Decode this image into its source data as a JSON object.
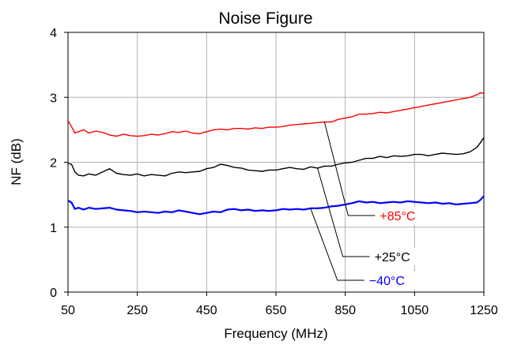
{
  "chart_data": {
    "type": "line",
    "title": "Noise Figure",
    "xlabel": "Frequency (MHz)",
    "ylabel": "NF (dB)",
    "xlim": [
      50,
      1250
    ],
    "ylim": [
      0,
      4
    ],
    "xticks": [
      50,
      250,
      450,
      650,
      850,
      1050,
      1250
    ],
    "yticks": [
      0,
      1,
      2,
      3,
      4
    ],
    "grid": true,
    "legend": "annotation-callouts-right",
    "series": [
      {
        "name": "+85°C",
        "color": "#ff0000",
        "x": [
          50,
          60,
          70,
          80,
          95,
          110,
          130,
          150,
          170,
          190,
          210,
          230,
          250,
          270,
          290,
          310,
          330,
          350,
          370,
          390,
          410,
          430,
          450,
          470,
          490,
          510,
          530,
          550,
          570,
          590,
          610,
          630,
          650,
          670,
          690,
          710,
          730,
          750,
          770,
          790,
          810,
          830,
          850,
          870,
          890,
          910,
          930,
          950,
          970,
          990,
          1010,
          1030,
          1050,
          1070,
          1090,
          1110,
          1130,
          1150,
          1170,
          1190,
          1210,
          1230,
          1240,
          1250
        ],
        "y": [
          2.64,
          2.55,
          2.45,
          2.47,
          2.5,
          2.45,
          2.48,
          2.46,
          2.42,
          2.4,
          2.43,
          2.41,
          2.4,
          2.41,
          2.43,
          2.42,
          2.44,
          2.47,
          2.46,
          2.48,
          2.45,
          2.44,
          2.47,
          2.5,
          2.51,
          2.5,
          2.52,
          2.52,
          2.51,
          2.53,
          2.52,
          2.54,
          2.54,
          2.55,
          2.57,
          2.58,
          2.59,
          2.6,
          2.61,
          2.62,
          2.62,
          2.66,
          2.68,
          2.7,
          2.74,
          2.74,
          2.75,
          2.77,
          2.76,
          2.78,
          2.8,
          2.82,
          2.84,
          2.86,
          2.88,
          2.9,
          2.92,
          2.94,
          2.96,
          2.98,
          3.0,
          3.04,
          3.07,
          3.06
        ]
      },
      {
        "name": "+25°C",
        "color": "#000000",
        "x": [
          50,
          60,
          70,
          80,
          95,
          110,
          130,
          150,
          170,
          190,
          210,
          230,
          250,
          270,
          290,
          310,
          330,
          350,
          370,
          390,
          410,
          430,
          450,
          470,
          490,
          510,
          530,
          550,
          570,
          590,
          610,
          630,
          650,
          670,
          690,
          710,
          730,
          750,
          770,
          790,
          810,
          830,
          850,
          870,
          890,
          910,
          930,
          950,
          970,
          990,
          1010,
          1030,
          1050,
          1070,
          1090,
          1110,
          1130,
          1150,
          1170,
          1190,
          1210,
          1230,
          1240,
          1250
        ],
        "y": [
          1.98,
          1.97,
          1.85,
          1.8,
          1.79,
          1.82,
          1.8,
          1.85,
          1.9,
          1.83,
          1.81,
          1.8,
          1.82,
          1.79,
          1.81,
          1.8,
          1.79,
          1.83,
          1.85,
          1.84,
          1.85,
          1.86,
          1.9,
          1.92,
          1.97,
          1.95,
          1.92,
          1.91,
          1.88,
          1.87,
          1.86,
          1.88,
          1.88,
          1.9,
          1.92,
          1.9,
          1.89,
          1.93,
          1.91,
          1.94,
          1.94,
          1.97,
          1.99,
          2.0,
          2.03,
          2.06,
          2.06,
          2.09,
          2.07,
          2.1,
          2.09,
          2.1,
          2.12,
          2.12,
          2.1,
          2.12,
          2.14,
          2.13,
          2.12,
          2.13,
          2.16,
          2.23,
          2.3,
          2.38
        ]
      },
      {
        "name": "−40°C",
        "color": "#0000ff",
        "x": [
          50,
          60,
          70,
          80,
          95,
          110,
          130,
          150,
          170,
          190,
          210,
          230,
          250,
          270,
          290,
          310,
          330,
          350,
          370,
          390,
          410,
          430,
          450,
          470,
          490,
          510,
          530,
          550,
          570,
          590,
          610,
          630,
          650,
          670,
          690,
          710,
          730,
          750,
          770,
          790,
          810,
          830,
          850,
          870,
          890,
          910,
          930,
          950,
          970,
          990,
          1010,
          1030,
          1050,
          1070,
          1090,
          1110,
          1130,
          1150,
          1170,
          1190,
          1210,
          1230,
          1240,
          1250
        ],
        "y": [
          1.41,
          1.38,
          1.28,
          1.3,
          1.27,
          1.3,
          1.28,
          1.29,
          1.3,
          1.27,
          1.26,
          1.25,
          1.23,
          1.24,
          1.23,
          1.22,
          1.24,
          1.23,
          1.26,
          1.24,
          1.22,
          1.2,
          1.22,
          1.24,
          1.23,
          1.27,
          1.28,
          1.26,
          1.27,
          1.25,
          1.26,
          1.25,
          1.26,
          1.28,
          1.27,
          1.28,
          1.27,
          1.29,
          1.29,
          1.3,
          1.32,
          1.33,
          1.35,
          1.37,
          1.4,
          1.38,
          1.39,
          1.37,
          1.38,
          1.39,
          1.38,
          1.4,
          1.39,
          1.38,
          1.37,
          1.38,
          1.36,
          1.37,
          1.35,
          1.36,
          1.37,
          1.38,
          1.42,
          1.48
        ]
      }
    ]
  }
}
